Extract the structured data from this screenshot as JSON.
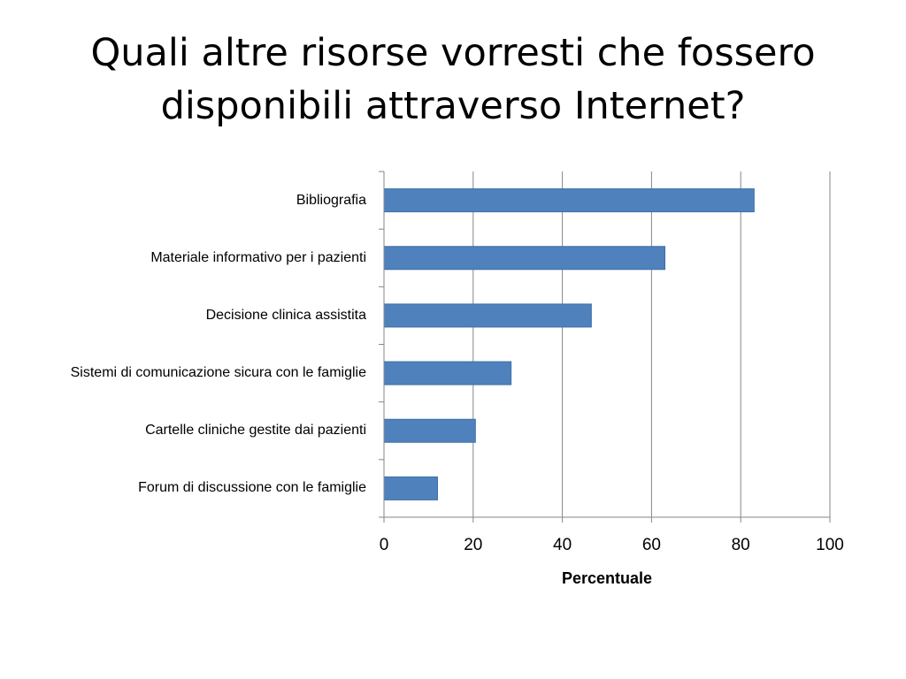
{
  "slide": {
    "title": "Quali altre risorse vorresti che fossero disponibili attraverso Internet?"
  },
  "chart_data": {
    "type": "bar",
    "orientation": "horizontal",
    "categories": [
      "Bibliografia",
      "Materiale informativo per i pazienti",
      "Decisione clinica assistita",
      "Sistemi di comunicazione sicura con le famiglie",
      "Cartelle cliniche gestite dai pazienti",
      "Forum di discussione con le famiglie"
    ],
    "values": [
      83,
      63,
      46.5,
      28.5,
      20.5,
      12
    ],
    "xlabel": "Percentuale",
    "ylabel": "",
    "xlim": [
      0,
      100
    ],
    "xticks": [
      "0",
      "20",
      "40",
      "60",
      "80",
      "100"
    ],
    "grid": "vertical",
    "legend": "none",
    "colors": {
      "bar": "#4f81bd",
      "bar_border": "#3f6fa8",
      "grid": "#868686",
      "axis": "#868686"
    }
  }
}
